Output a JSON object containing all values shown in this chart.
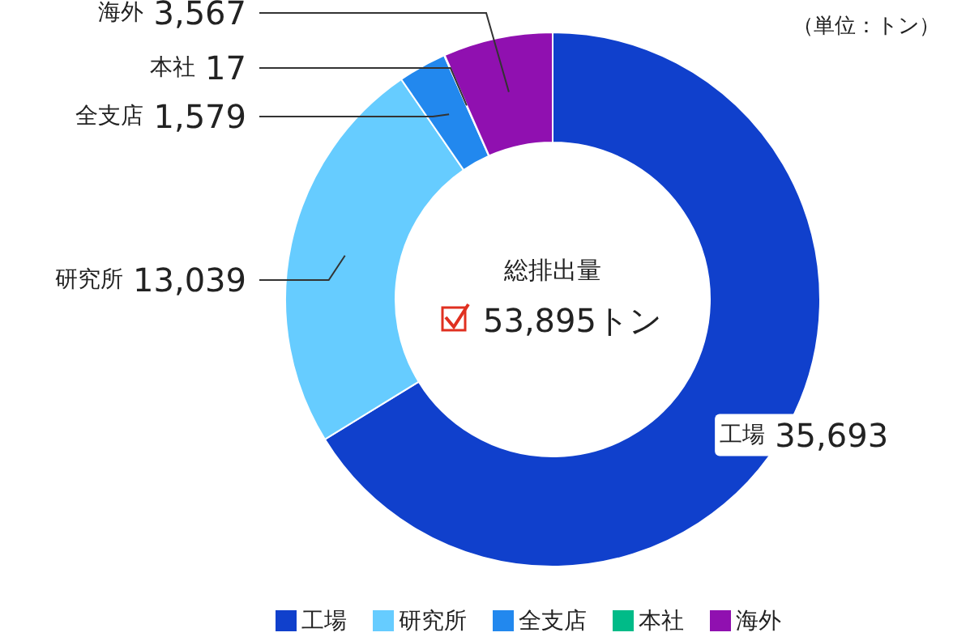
{
  "chart_data": {
    "type": "donut",
    "categories": [
      "工場",
      "研究所",
      "全支店",
      "本社",
      "海外"
    ],
    "values": [
      35693,
      13039,
      1579,
      17,
      3567
    ],
    "value_labels": [
      "35,693",
      "13,039",
      "1,579",
      "17",
      "3,567"
    ],
    "colors": [
      "#1040cc",
      "#66ccff",
      "#2288ee",
      "#00bb88",
      "#9010b0"
    ],
    "annotations": [
      "（単位：トン）",
      "総排出量",
      "53,895トン"
    ],
    "legend": "bottom"
  }
}
